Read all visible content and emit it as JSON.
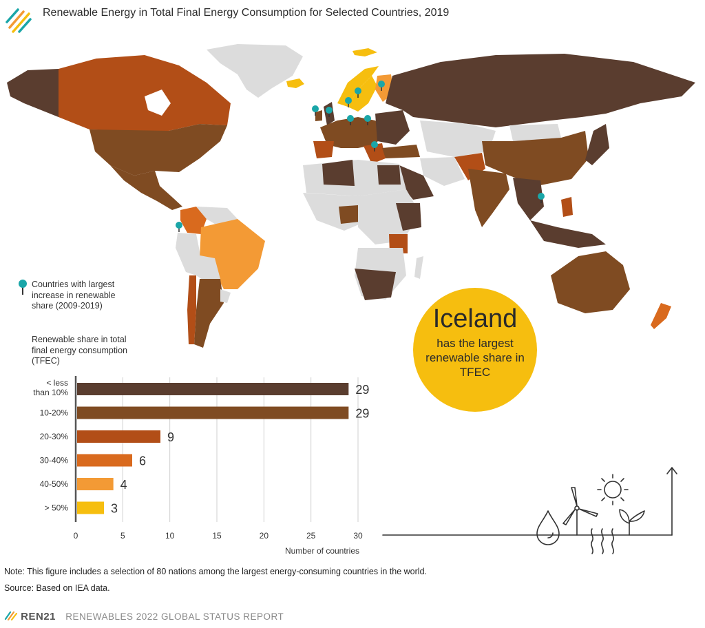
{
  "title": "Renewable Energy in Total Final Energy Consumption for Selected Countries, 2019",
  "legend": {
    "pin_label": "Countries with largest increase in renewable share (2009-2019)",
    "share_label": "Renewable share in total final energy consumption (TFEC)"
  },
  "callout": {
    "headline": "Iceland",
    "text": "has the largest renewable share in TFEC"
  },
  "colors": {
    "lt10": "#5a3d2f",
    "c10_20": "#7f4b22",
    "c20_30": "#b24e17",
    "c30_40": "#d96a1e",
    "c40_50": "#f39a35",
    "gt50": "#f6be0f",
    "nodata": "#dcdcdc",
    "pin": "#1aa6a8"
  },
  "chart_data": {
    "type": "bar",
    "orientation": "horizontal",
    "categories": [
      "< less than 10%",
      "10-20%",
      "20-30%",
      "30-40%",
      "40-50%",
      "> 50%"
    ],
    "values": [
      29,
      29,
      9,
      6,
      4,
      3
    ],
    "xlabel": "Number of countries",
    "ylabel": "",
    "xlim": [
      0,
      30
    ],
    "xticks": [
      0,
      5,
      10,
      15,
      20,
      25,
      30
    ],
    "grid": true
  },
  "note": "Note: This figure includes a selection of 80 nations among the largest energy-consuming countries in the world.",
  "source": "Source: Based on IEA data.",
  "footer": {
    "brand": "REN21",
    "report": "RENEWABLES 2022 GLOBAL STATUS REPORT"
  }
}
